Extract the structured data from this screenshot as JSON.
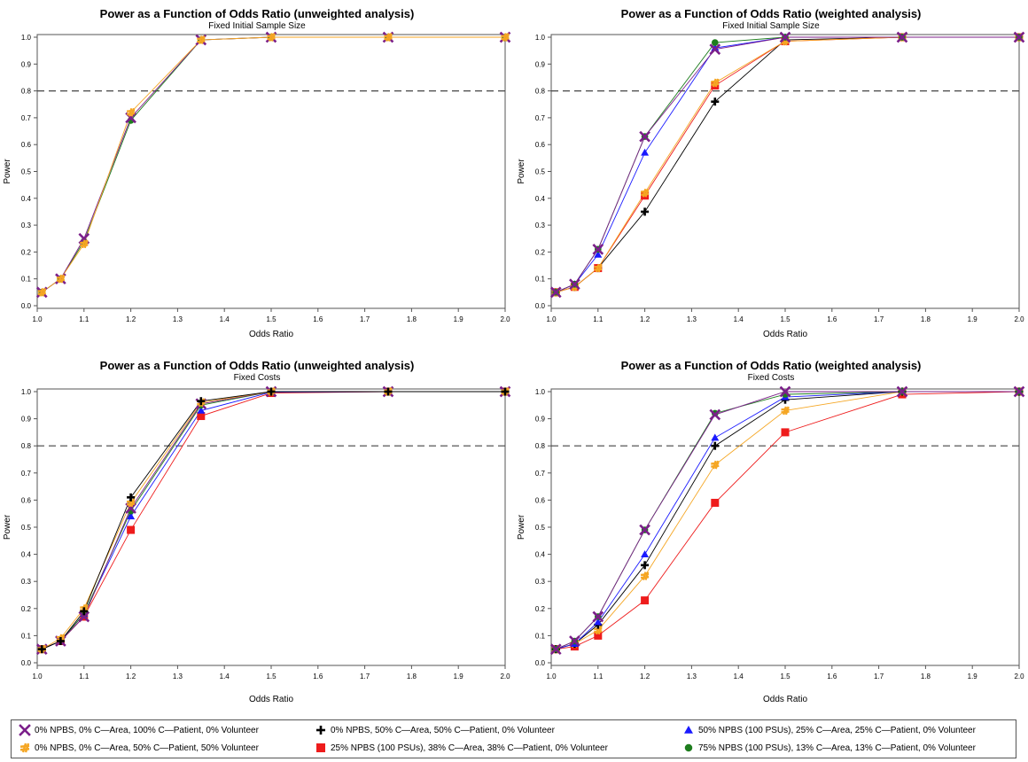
{
  "markers": {
    "np0_ca0": {
      "shape": "x",
      "color": "#7b1f8a"
    },
    "np0_ca50_pt50": {
      "shape": "plus",
      "color": "#000000"
    },
    "np50": {
      "shape": "triangle",
      "color": "#1a1aff"
    },
    "np0_vol50": {
      "shape": "hash",
      "color": "#f5a623"
    },
    "np25": {
      "shape": "square",
      "color": "#ee1c1c"
    },
    "np75": {
      "shape": "circle",
      "color": "#1e7d1e"
    }
  },
  "legend": [
    {
      "key": "np0_ca0",
      "label": "0% NPBS, 0% C—Area, 100% C—Patient, 0% Volunteer"
    },
    {
      "key": "np0_ca50_pt50",
      "label": "0% NPBS, 50% C—Area, 50% C—Patient, 0% Volunteer"
    },
    {
      "key": "np50",
      "label": "50% NPBS (100 PSUs), 25% C—Area, 25% C—Patient, 0% Volunteer"
    },
    {
      "key": "np0_vol50",
      "label": "0% NPBS, 0% C—Area, 50% C—Patient, 50% Volunteer"
    },
    {
      "key": "np25",
      "label": "25% NPBS (100 PSUs), 38% C—Area, 38% C—Patient, 0% Volunteer"
    },
    {
      "key": "np75",
      "label": "75% NPBS (100 PSUs), 13% C—Area, 13% C—Patient, 0% Volunteer"
    }
  ],
  "chart_data": [
    {
      "type": "line",
      "title": "Power as a Function of Odds Ratio (unweighted analysis)",
      "subtitle": "Fixed Initial Sample Size",
      "xlabel": "Odds Ratio",
      "ylabel": "Power",
      "xlim": [
        1.0,
        2.0
      ],
      "ylim": [
        0.0,
        1.0
      ],
      "xticks": [
        "1.0",
        "1.1",
        "1.2",
        "1.3",
        "1.4",
        "1.5",
        "1.6",
        "1.7",
        "1.8",
        "1.9",
        "2.0"
      ],
      "yticks": [
        "0.0",
        "0.1",
        "0.2",
        "0.3",
        "0.4",
        "0.5",
        "0.6",
        "0.7",
        "0.8",
        "0.9",
        "1.0"
      ],
      "reference_line": 0.8,
      "x": [
        1.01,
        1.05,
        1.1,
        1.2,
        1.35,
        1.5,
        1.75,
        2.0
      ],
      "series": [
        {
          "key": "np75",
          "values": [
            0.05,
            0.1,
            0.24,
            0.69,
            0.99,
            1.0,
            1.0,
            1.0
          ]
        },
        {
          "key": "np0_ca0",
          "values": [
            0.05,
            0.1,
            0.25,
            0.7,
            0.99,
            1.0,
            1.0,
            1.0
          ]
        },
        {
          "key": "np0_vol50",
          "values": [
            0.05,
            0.1,
            0.23,
            0.72,
            0.99,
            1.0,
            1.0,
            1.0
          ]
        }
      ]
    },
    {
      "type": "line",
      "title": "Power as a Function of Odds Ratio (weighted analysis)",
      "subtitle": "Fixed Initial Sample Size",
      "xlabel": "Odds Ratio",
      "ylabel": "Power",
      "xlim": [
        1.0,
        2.0
      ],
      "ylim": [
        0.0,
        1.0
      ],
      "xticks": [
        "1.0",
        "1.1",
        "1.2",
        "1.3",
        "1.4",
        "1.5",
        "1.6",
        "1.7",
        "1.8",
        "1.9",
        "2.0"
      ],
      "yticks": [
        "0.0",
        "0.1",
        "0.2",
        "0.3",
        "0.4",
        "0.5",
        "0.6",
        "0.7",
        "0.8",
        "0.9",
        "1.0"
      ],
      "reference_line": 0.8,
      "x": [
        1.01,
        1.05,
        1.1,
        1.2,
        1.35,
        1.5,
        1.75,
        2.0
      ],
      "series": [
        {
          "key": "np0_ca50_pt50",
          "values": [
            0.05,
            0.07,
            0.14,
            0.35,
            0.76,
            0.99,
            1.0,
            1.0
          ]
        },
        {
          "key": "np25",
          "values": [
            0.05,
            0.07,
            0.14,
            0.41,
            0.82,
            0.985,
            1.0,
            1.0
          ]
        },
        {
          "key": "np0_vol50",
          "values": [
            0.05,
            0.07,
            0.14,
            0.42,
            0.83,
            0.985,
            1.0,
            1.0
          ]
        },
        {
          "key": "np50",
          "values": [
            0.05,
            0.08,
            0.19,
            0.57,
            0.96,
            1.0,
            1.0,
            1.0
          ]
        },
        {
          "key": "np75",
          "values": [
            0.05,
            0.08,
            0.21,
            0.63,
            0.98,
            1.0,
            1.0,
            1.0
          ]
        },
        {
          "key": "np0_ca0",
          "values": [
            0.05,
            0.08,
            0.21,
            0.63,
            0.955,
            1.0,
            1.0,
            1.0
          ]
        }
      ]
    },
    {
      "type": "line",
      "title": "Power as a Function of Odds Ratio (unweighted analysis)",
      "subtitle": "Fixed Costs",
      "xlabel": "Odds Ratio",
      "ylabel": "Power",
      "xlim": [
        1.0,
        2.0
      ],
      "ylim": [
        0.0,
        1.0
      ],
      "xticks": [
        "1.0",
        "1.1",
        "1.2",
        "1.3",
        "1.4",
        "1.5",
        "1.6",
        "1.7",
        "1.8",
        "1.9",
        "2.0"
      ],
      "yticks": [
        "0.0",
        "0.1",
        "0.2",
        "0.3",
        "0.4",
        "0.5",
        "0.6",
        "0.7",
        "0.8",
        "0.9",
        "1.0"
      ],
      "reference_line": 0.8,
      "x": [
        1.01,
        1.05,
        1.1,
        1.2,
        1.35,
        1.5,
        1.75,
        2.0
      ],
      "series": [
        {
          "key": "np25",
          "values": [
            0.05,
            0.08,
            0.17,
            0.49,
            0.91,
            0.995,
            1.0,
            1.0
          ]
        },
        {
          "key": "np50",
          "values": [
            0.05,
            0.08,
            0.18,
            0.54,
            0.93,
            0.998,
            1.0,
            1.0
          ]
        },
        {
          "key": "np75",
          "values": [
            0.05,
            0.08,
            0.18,
            0.56,
            0.95,
            1.0,
            1.0,
            1.0
          ]
        },
        {
          "key": "np0_ca0",
          "values": [
            0.05,
            0.08,
            0.17,
            0.57,
            0.955,
            1.0,
            1.0,
            1.0
          ]
        },
        {
          "key": "np0_vol50",
          "values": [
            0.05,
            0.09,
            0.2,
            0.59,
            0.96,
            1.0,
            1.0,
            1.0
          ]
        },
        {
          "key": "np0_ca50_pt50",
          "values": [
            0.05,
            0.08,
            0.19,
            0.61,
            0.965,
            1.0,
            1.0,
            1.0
          ]
        }
      ]
    },
    {
      "type": "line",
      "title": "Power as a Function of Odds Ratio (weighted analysis)",
      "subtitle": "Fixed Costs",
      "xlabel": "Odds Ratio",
      "ylabel": "Power",
      "xlim": [
        1.0,
        2.0
      ],
      "ylim": [
        0.0,
        1.0
      ],
      "xticks": [
        "1.0",
        "1.1",
        "1.2",
        "1.3",
        "1.4",
        "1.5",
        "1.6",
        "1.7",
        "1.8",
        "1.9",
        "2.0"
      ],
      "yticks": [
        "0.0",
        "0.1",
        "0.2",
        "0.3",
        "0.4",
        "0.5",
        "0.6",
        "0.7",
        "0.8",
        "0.9",
        "1.0"
      ],
      "reference_line": 0.8,
      "x": [
        1.01,
        1.05,
        1.1,
        1.2,
        1.35,
        1.5,
        1.75,
        2.0
      ],
      "series": [
        {
          "key": "np25",
          "values": [
            0.05,
            0.06,
            0.1,
            0.23,
            0.59,
            0.85,
            0.99,
            1.0
          ]
        },
        {
          "key": "np0_vol50",
          "values": [
            0.05,
            0.07,
            0.12,
            0.32,
            0.73,
            0.93,
            1.0,
            1.0
          ]
        },
        {
          "key": "np0_ca50_pt50",
          "values": [
            0.05,
            0.07,
            0.14,
            0.36,
            0.8,
            0.97,
            1.0,
            1.0
          ]
        },
        {
          "key": "np50",
          "values": [
            0.05,
            0.07,
            0.15,
            0.4,
            0.83,
            0.98,
            1.0,
            1.0
          ]
        },
        {
          "key": "np75",
          "values": [
            0.05,
            0.08,
            0.17,
            0.49,
            0.92,
            0.99,
            1.0,
            1.0
          ]
        },
        {
          "key": "np0_ca0",
          "values": [
            0.05,
            0.08,
            0.17,
            0.49,
            0.915,
            1.0,
            1.0,
            1.0
          ]
        }
      ]
    }
  ]
}
